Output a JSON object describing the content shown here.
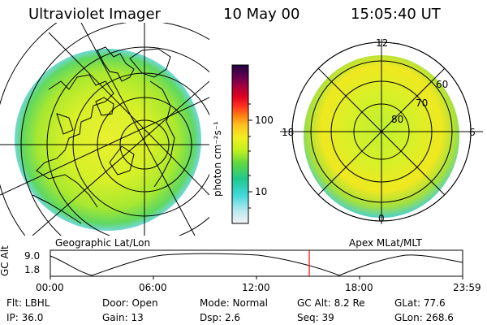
{
  "header": {
    "instrument": "Ultraviolet Imager",
    "date": "10 May 00",
    "time": "15:05:40 UT"
  },
  "left_panel": {
    "label": "Geographic Lat/Lon"
  },
  "right_panel": {
    "label": "Apex MLat/MLT",
    "mlt_labels": {
      "top": "12",
      "left": "18",
      "right": "6",
      "bottom": "0"
    },
    "mlat_labels": [
      "60",
      "70",
      "80"
    ]
  },
  "colorbar": {
    "unit_label": "photon cm⁻²s⁻¹",
    "ticks": [
      "100",
      "10"
    ],
    "scale": "log",
    "colors": [
      "#f2f2f2",
      "#b8e8f0",
      "#40d8d8",
      "#20c890",
      "#60d840",
      "#c0f020",
      "#f0f020",
      "#ffc020",
      "#ff8010",
      "#ff3020",
      "#e00020",
      "#a00040",
      "#600050",
      "#200040"
    ]
  },
  "altitude_plot": {
    "ylabel": "GC Alt",
    "y_ticks": [
      "9.0",
      "1.8"
    ],
    "x_ticks": [
      "00:00",
      "06:00",
      "12:00",
      "18:00",
      "23:59"
    ],
    "current_time_fraction": 0.628,
    "marker_color": "#ff0000"
  },
  "info": {
    "flt": "Flt: LBHL",
    "door": "Door: Open",
    "mode": "Mode: Normal",
    "gc_alt": "GC Alt: 8.2 Re",
    "glat": "GLat:  77.6",
    "ip": "IP: 36.0",
    "gain": "Gain: 13",
    "dsp": "Dsp:    2.6",
    "seq": "Seq: 39",
    "glon": "GLon: 268.6"
  }
}
